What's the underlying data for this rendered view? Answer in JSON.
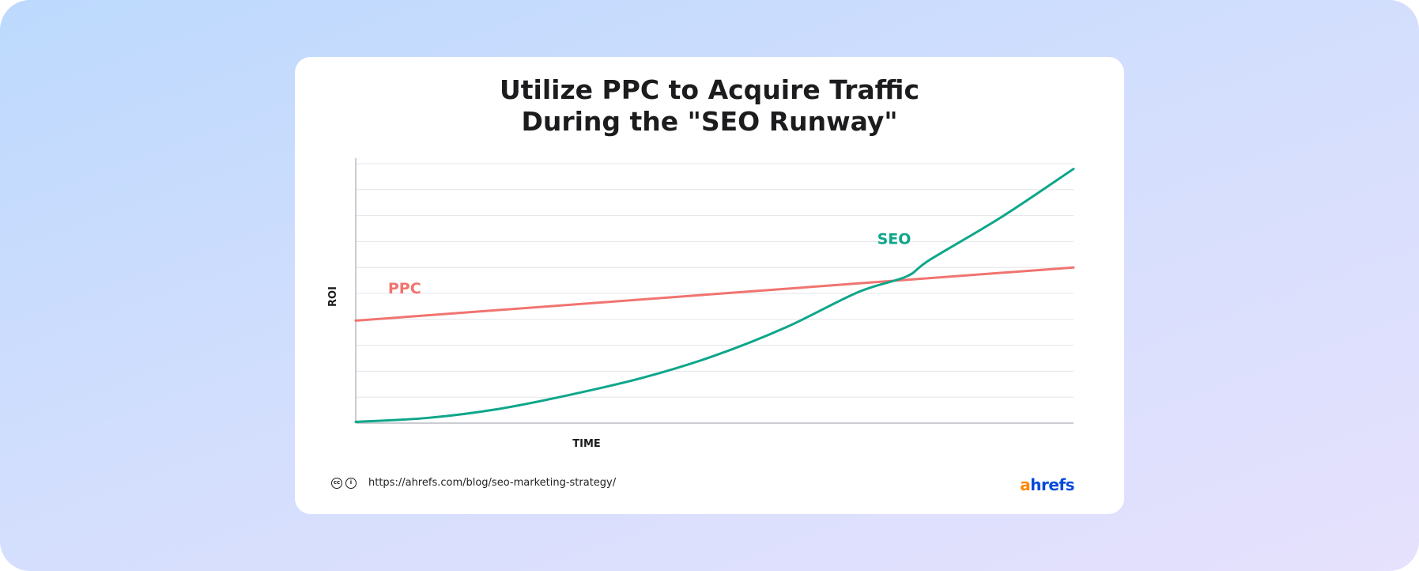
{
  "title_lines": [
    "Utilize PPC to Acquire Traffic",
    "During the \"SEO Runway\""
  ],
  "footer": {
    "url": "https://ahrefs.com/blog/seo-marketing-strategy/",
    "cc_icons": [
      "cc-icon",
      "by-icon"
    ],
    "logo_prefix": "a",
    "logo_rest": "hrefs",
    "logo_colors": {
      "prefix": "#ff8800",
      "rest": "#054ada"
    }
  },
  "chart_data": {
    "type": "line",
    "title": "Utilize PPC to Acquire Traffic During the \"SEO Runway\"",
    "xlabel": "TIME",
    "ylabel": "ROI",
    "xlim": [
      0,
      10
    ],
    "ylim": [
      0,
      10
    ],
    "grid": "horizontal",
    "legend": "inline labels",
    "series": [
      {
        "name": "PPC",
        "color": "#f07470",
        "x": [
          0,
          10
        ],
        "y": [
          3.95,
          6.0
        ]
      },
      {
        "name": "SEO",
        "color": "#0ea68a",
        "x": [
          0,
          1,
          2,
          3,
          4,
          5,
          6,
          7,
          7.67,
          8,
          9,
          10
        ],
        "y": [
          0.05,
          0.2,
          0.55,
          1.1,
          1.75,
          2.6,
          3.7,
          5.05,
          5.65,
          6.3,
          7.95,
          9.8
        ]
      }
    ]
  }
}
